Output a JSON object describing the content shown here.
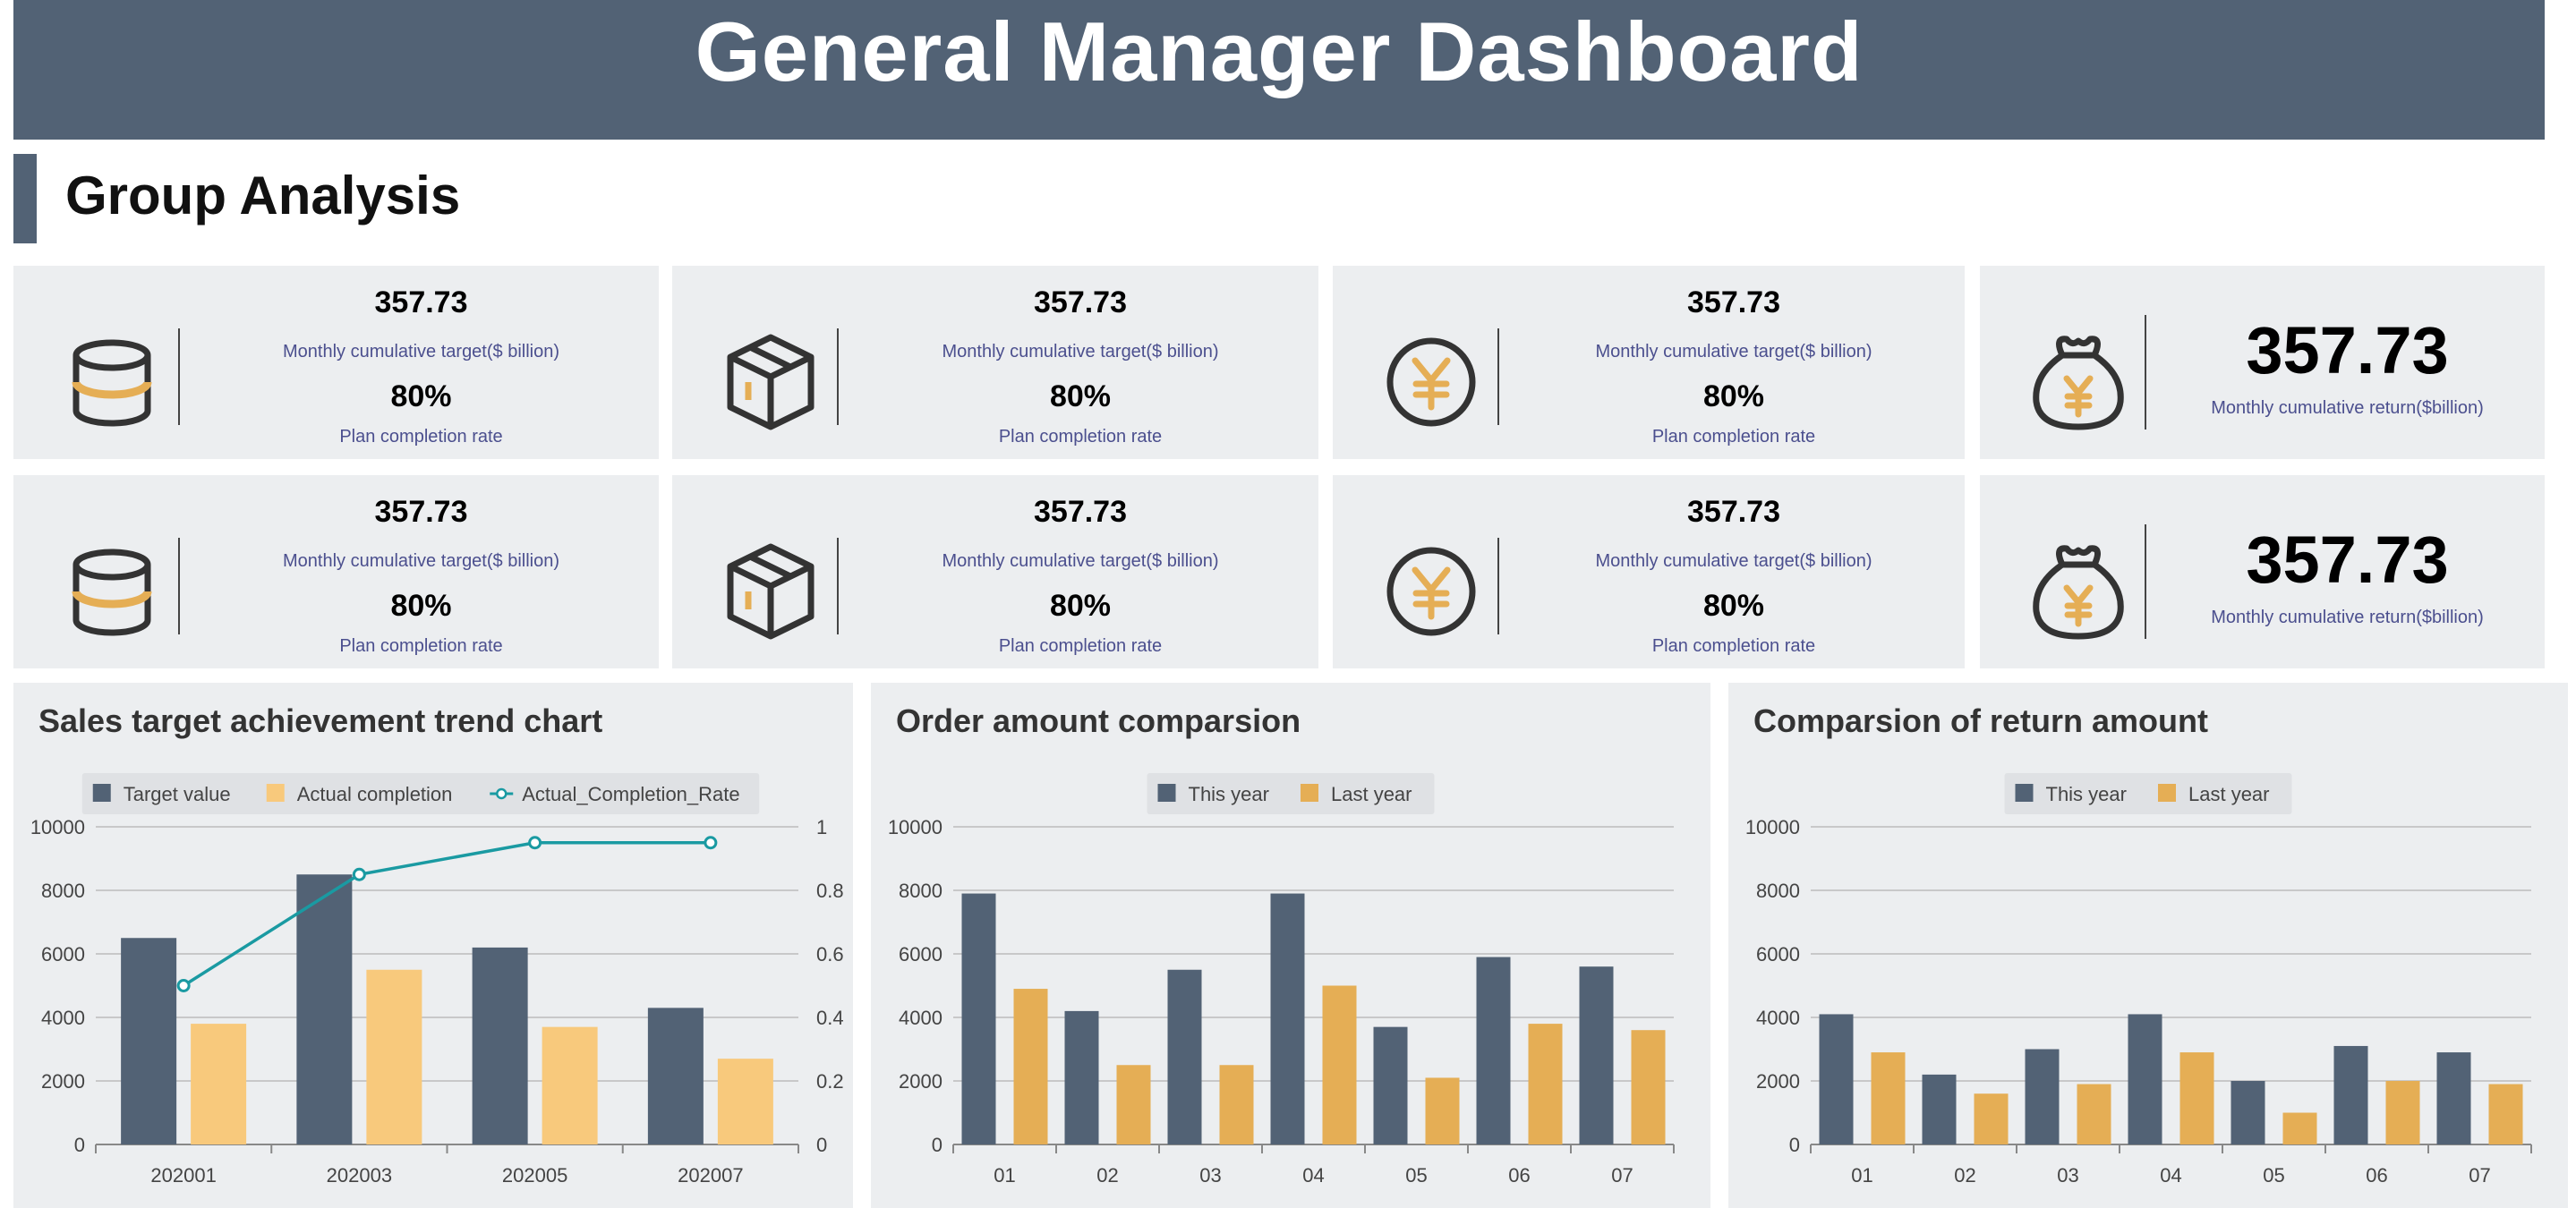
{
  "header": {
    "title": "General Manager Dashboard"
  },
  "section": {
    "title": "Group Analysis"
  },
  "colors": {
    "primary": "#526275",
    "this_year_bar": "#526275",
    "last_year_bar": "#e5ae55",
    "actual_bar": "#f8c97c",
    "rate_line": "#1a9aa2",
    "icon_stroke": "#333333",
    "icon_accent": "#e5ae55",
    "label": "#4b4f8e"
  },
  "kpi_rows": [
    {
      "cards": [
        {
          "icon": "coin-stack-icon",
          "value": "357.73",
          "value_label": "Monthly cumulative target($ billion)",
          "rate": "80%",
          "rate_label": "Plan completion rate"
        },
        {
          "icon": "box-icon",
          "value": "357.73",
          "value_label": "Monthly cumulative target($ billion)",
          "rate": "80%",
          "rate_label": "Plan completion rate"
        },
        {
          "icon": "yen-coin-icon",
          "value": "357.73",
          "value_label": "Monthly cumulative target($ billion)",
          "rate": "80%",
          "rate_label": "Plan completion rate"
        },
        {
          "icon": "money-bag-icon",
          "value": "357.73",
          "value_label": "Monthly cumulative return($billion)"
        }
      ]
    },
    {
      "cards": [
        {
          "icon": "coin-stack-icon",
          "value": "357.73",
          "value_label": "Monthly cumulative target($ billion)",
          "rate": "80%",
          "rate_label": "Plan completion rate"
        },
        {
          "icon": "box-icon",
          "value": "357.73",
          "value_label": "Monthly cumulative target($ billion)",
          "rate": "80%",
          "rate_label": "Plan completion rate"
        },
        {
          "icon": "yen-coin-icon",
          "value": "357.73",
          "value_label": "Monthly cumulative target($ billion)",
          "rate": "80%",
          "rate_label": "Plan completion rate"
        },
        {
          "icon": "money-bag-icon",
          "value": "357.73",
          "value_label": "Monthly cumulative return($billion)"
        }
      ]
    }
  ],
  "chart_data": [
    {
      "type": "bar",
      "title": "Sales target achievement trend chart",
      "categories": [
        "202001",
        "202003",
        "202005",
        "202007"
      ],
      "series": [
        {
          "name": "Target value",
          "type": "bar",
          "values": [
            6500,
            8500,
            6200,
            4300
          ]
        },
        {
          "name": "Actual completion",
          "type": "bar",
          "values": [
            3800,
            5500,
            3700,
            2700
          ]
        },
        {
          "name": "Actual_Completion_Rate",
          "type": "line",
          "axis": "right",
          "values": [
            0.5,
            0.85,
            0.95,
            0.95
          ]
        }
      ],
      "ylim": [
        0,
        10000
      ],
      "yticks": [
        "10000",
        "8000",
        "6000",
        "4000",
        "2000",
        "0"
      ],
      "y2lim": [
        0,
        1
      ],
      "y2ticks": [
        "1",
        "0.8",
        "0.6",
        "0.4",
        "0.2",
        "0"
      ],
      "grid": true,
      "legend": "top-center"
    },
    {
      "type": "bar",
      "title": "Order amount comparsion",
      "categories": [
        "01",
        "02",
        "03",
        "04",
        "05",
        "06",
        "07"
      ],
      "series": [
        {
          "name": "This year",
          "values": [
            7900,
            4200,
            5500,
            7900,
            3700,
            5900,
            5600
          ]
        },
        {
          "name": "Last year",
          "values": [
            4900,
            2500,
            2500,
            5000,
            2100,
            3800,
            3600
          ]
        }
      ],
      "ylim": [
        0,
        10000
      ],
      "yticks": [
        "10000",
        "8000",
        "6000",
        "4000",
        "2000",
        "0"
      ],
      "grid": true,
      "legend": "top-center"
    },
    {
      "type": "bar",
      "title": "Comparsion of return amount",
      "categories": [
        "01",
        "02",
        "03",
        "04",
        "05",
        "06",
        "07"
      ],
      "series": [
        {
          "name": "This year",
          "values": [
            4100,
            2200,
            3000,
            4100,
            2000,
            3100,
            2900
          ]
        },
        {
          "name": "Last year",
          "values": [
            2900,
            1600,
            1900,
            2900,
            1000,
            2000,
            1900
          ]
        }
      ],
      "ylim": [
        0,
        10000
      ],
      "yticks": [
        "10000",
        "8000",
        "6000",
        "4000",
        "2000",
        "0"
      ],
      "grid": true,
      "legend": "top-center"
    }
  ]
}
